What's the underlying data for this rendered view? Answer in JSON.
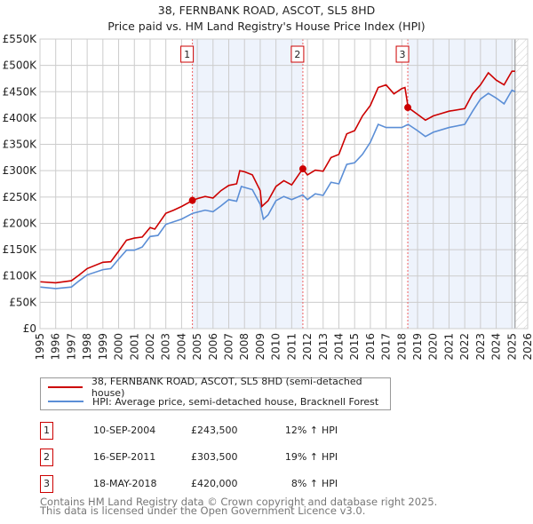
{
  "header": {
    "title": "38, FERNBANK ROAD, ASCOT, SL5 8HD",
    "subtitle": "Price paid vs. HM Land Registry's House Price Index (HPI)"
  },
  "chart_data": {
    "type": "line",
    "title": "38, FERNBANK ROAD, ASCOT, SL5 8HD — Price paid vs. HM Land Registry's House Price Index (HPI)",
    "xlim": [
      1995,
      2026
    ],
    "ylim": [
      0,
      550000
    ],
    "x_ticks": [
      "1995",
      "1996",
      "1997",
      "1998",
      "1999",
      "2000",
      "2001",
      "2002",
      "2003",
      "2004",
      "2005",
      "2006",
      "2007",
      "2008",
      "2009",
      "2010",
      "2011",
      "2012",
      "2013",
      "2014",
      "2015",
      "2016",
      "2017",
      "2018",
      "2019",
      "2020",
      "2021",
      "2022",
      "2023",
      "2024",
      "2025",
      "2026"
    ],
    "y_ticks": [
      "£0",
      "£50K",
      "£100K",
      "£150K",
      "£200K",
      "£250K",
      "£300K",
      "£350K",
      "£400K",
      "£450K",
      "£500K",
      "£550K"
    ],
    "grid": true,
    "colors": {
      "property": "#cc0000",
      "hpi": "#5b8ed6",
      "shade": "#eef3fc"
    },
    "series": [
      {
        "name": "38, FERNBANK ROAD, ASCOT, SL5 8HD (semi-detached house)",
        "x": [
          1995,
          1996,
          1997,
          1997.5,
          1998,
          1999,
          1999.5,
          2000,
          2000.5,
          2001,
          2001.5,
          2002,
          2002.3,
          2003,
          2003.5,
          2004,
          2004.7,
          2005,
          2005.5,
          2006,
          2006.5,
          2007,
          2007.5,
          2007.7,
          2008,
          2008.5,
          2009,
          2009.1,
          2009.5,
          2010,
          2010.5,
          2011,
          2011.7,
          2012,
          2012.5,
          2013,
          2013.5,
          2014,
          2014.5,
          2015,
          2015.5,
          2016,
          2016.5,
          2017,
          2017.5,
          2018,
          2018.2,
          2018.4,
          2019,
          2019.5,
          2020,
          2021,
          2022,
          2022.5,
          2023,
          2023.5,
          2024,
          2024.5,
          2025,
          2025.2
        ],
        "y": [
          89000,
          87000,
          91000,
          102000,
          114000,
          126000,
          127000,
          147000,
          168000,
          172000,
          174000,
          192000,
          189000,
          219000,
          225000,
          232000,
          243500,
          247000,
          251000,
          248000,
          262000,
          272000,
          275000,
          300000,
          298000,
          292000,
          262000,
          232000,
          243000,
          270000,
          281000,
          273000,
          303500,
          292000,
          301000,
          299000,
          325000,
          331000,
          370000,
          376000,
          404000,
          424000,
          458000,
          463000,
          446000,
          456000,
          458000,
          420000,
          407000,
          396000,
          404000,
          413000,
          418000,
          446000,
          463000,
          486000,
          472000,
          463000,
          489000,
          489000
        ]
      },
      {
        "name": "HPI: Average price, semi-detached house, Bracknell Forest",
        "x": [
          1995,
          1996,
          1997,
          1997.5,
          1998,
          1999,
          1999.5,
          2000,
          2000.5,
          2001,
          2001.5,
          2002,
          2002.5,
          2003,
          2004,
          2004.7,
          2005.5,
          2006,
          2006.5,
          2007,
          2007.5,
          2007.8,
          2008.5,
          2009,
          2009.2,
          2009.5,
          2010,
          2010.5,
          2011,
          2011.7,
          2012,
          2012.5,
          2013,
          2013.5,
          2014,
          2014.5,
          2015,
          2015.5,
          2016,
          2016.5,
          2017,
          2017.5,
          2018,
          2018.4,
          2019,
          2019.5,
          2020,
          2021,
          2022,
          2022.5,
          2023,
          2023.5,
          2024,
          2024.5,
          2025,
          2025.2
        ],
        "y": [
          79000,
          76000,
          79000,
          91000,
          102000,
          112000,
          114000,
          132000,
          149000,
          149000,
          155000,
          175000,
          177000,
          198000,
          208000,
          219000,
          225000,
          222000,
          233000,
          245000,
          242000,
          270000,
          264000,
          236000,
          208000,
          216000,
          243000,
          251000,
          245000,
          254000,
          245000,
          256000,
          253000,
          278000,
          275000,
          312000,
          315000,
          331000,
          354000,
          388000,
          382000,
          382000,
          382000,
          388000,
          376000,
          365000,
          373000,
          382000,
          388000,
          413000,
          436000,
          447000,
          438000,
          427000,
          453000,
          450000
        ]
      }
    ],
    "sales": [
      {
        "label": "1",
        "x": 2004.69,
        "y": 243500,
        "date": "10-SEP-2004",
        "price": "£243,500",
        "pct": "12%",
        "arrow": "↑",
        "hpi": "HPI"
      },
      {
        "label": "2",
        "x": 2011.71,
        "y": 303500,
        "date": "16-SEP-2011",
        "price": "£303,500",
        "pct": "19%",
        "arrow": "↑",
        "hpi": "HPI"
      },
      {
        "label": "3",
        "x": 2018.38,
        "y": 420000,
        "date": "18-MAY-2018",
        "price": "£420,000",
        "pct": "8%",
        "arrow": "↑",
        "hpi": "HPI"
      }
    ],
    "shaded_ranges": [
      [
        2004.69,
        2011.71
      ],
      [
        2018.38,
        2025.2
      ]
    ],
    "forecast_from": 2025.2,
    "legend_position": "below"
  },
  "legend": {
    "property": "38, FERNBANK ROAD, ASCOT, SL5 8HD (semi-detached house)",
    "hpi": "HPI: Average price, semi-detached house, Bracknell Forest"
  },
  "footer": {
    "line1": "Contains HM Land Registry data © Crown copyright and database right 2025.",
    "line2": "This data is licensed under the Open Government Licence v3.0."
  }
}
